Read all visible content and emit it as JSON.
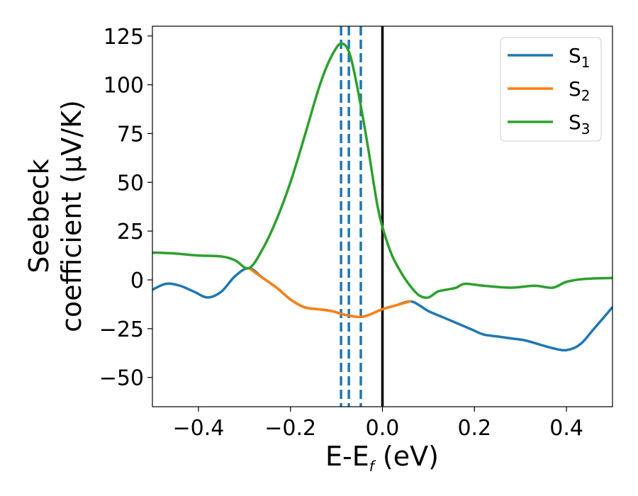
{
  "chart_data": {
    "type": "line",
    "xlabel_main": "E-E",
    "xlabel_sub": "f",
    "xlabel_tail": " (eV)",
    "ylabel_line1": "Seebeck",
    "ylabel_line2": "coefficient  (μV/K)",
    "xlim": [
      -0.5,
      0.5
    ],
    "ylim": [
      -65,
      130
    ],
    "xticks": [
      -0.4,
      -0.2,
      0.0,
      0.2,
      0.4
    ],
    "xtick_labels": [
      "−0.4",
      "−0.2",
      "0.0",
      "0.2",
      "0.4"
    ],
    "yticks": [
      -50,
      -25,
      0,
      25,
      50,
      75,
      100,
      125
    ],
    "ytick_labels": [
      "−50",
      "−25",
      "0",
      "25",
      "50",
      "75",
      "100",
      "125"
    ],
    "legend_position": "top-right",
    "series": [
      {
        "name_main": "S",
        "name_sub": "1",
        "color": "#1f77b4",
        "x": [
          -0.5,
          -0.47,
          -0.44,
          -0.41,
          -0.38,
          -0.35,
          -0.32,
          -0.29,
          -0.26,
          -0.23,
          -0.2,
          -0.17,
          -0.14,
          -0.11,
          -0.08,
          -0.05,
          -0.03,
          0.0,
          0.03,
          0.06,
          0.08,
          0.1,
          0.13,
          0.16,
          0.19,
          0.22,
          0.25,
          0.28,
          0.31,
          0.34,
          0.37,
          0.4,
          0.43,
          0.46,
          0.5
        ],
        "y": [
          -5,
          -2,
          -3,
          -6,
          -9,
          -6,
          2,
          6,
          1,
          -4,
          -10,
          -14,
          -15,
          -16,
          -18,
          -19,
          -18,
          -15,
          -13,
          -11,
          -13,
          -16,
          -19,
          -22,
          -25,
          -28,
          -29,
          -30,
          -31,
          -33,
          -35,
          -36,
          -33,
          -25,
          -14
        ]
      },
      {
        "name_main": "S",
        "name_sub": "2",
        "color": "#ff7f0e",
        "x": [
          -0.29,
          -0.26,
          -0.23,
          -0.2,
          -0.17,
          -0.14,
          -0.11,
          -0.08,
          -0.05,
          -0.03,
          0.0,
          0.03,
          0.06
        ],
        "y": [
          6,
          1,
          -4,
          -10,
          -14,
          -15,
          -16,
          -18,
          -19,
          -18,
          -15,
          -13,
          -11
        ]
      },
      {
        "name_main": "S",
        "name_sub": "3",
        "color": "#2ca02c",
        "x": [
          -0.5,
          -0.45,
          -0.4,
          -0.35,
          -0.32,
          -0.29,
          -0.26,
          -0.23,
          -0.2,
          -0.17,
          -0.14,
          -0.12,
          -0.1,
          -0.09,
          -0.08,
          -0.07,
          -0.06,
          -0.05,
          -0.04,
          -0.03,
          -0.02,
          -0.01,
          0.0,
          0.02,
          0.04,
          0.06,
          0.08,
          0.1,
          0.12,
          0.14,
          0.16,
          0.18,
          0.22,
          0.28,
          0.33,
          0.37,
          0.4,
          0.44,
          0.5
        ],
        "y": [
          14,
          13.5,
          12.5,
          12,
          10,
          6,
          16,
          31,
          50,
          73,
          97,
          110,
          119,
          121,
          120,
          115,
          105,
          93,
          80,
          66,
          51,
          37,
          27,
          13,
          4,
          -3,
          -8,
          -9,
          -6,
          -5,
          -4,
          -2,
          -3,
          -4,
          -3,
          -4,
          -1,
          0.5,
          1
        ]
      }
    ],
    "vlines": [
      {
        "x": -0.09,
        "color": "#1f77b4",
        "style": "dashed"
      },
      {
        "x": -0.073,
        "color": "#1f77b4",
        "style": "dashed"
      },
      {
        "x": -0.047,
        "color": "#1f77b4",
        "style": "dashed"
      },
      {
        "x": 0.0,
        "color": "#000000",
        "style": "solid"
      }
    ]
  }
}
